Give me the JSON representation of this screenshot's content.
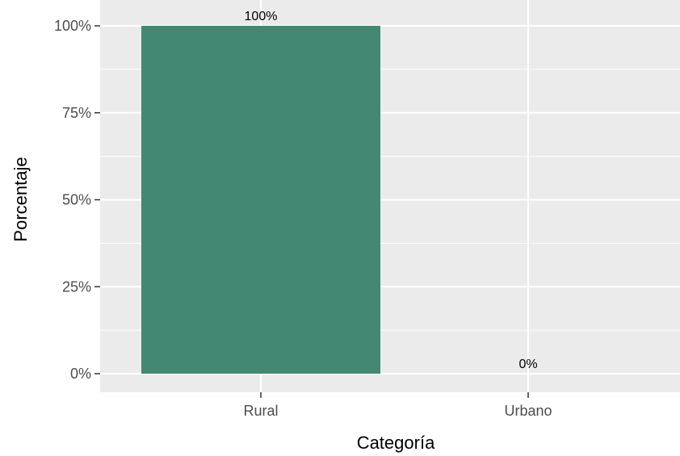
{
  "chart_data": {
    "type": "bar",
    "categories": [
      "Rural",
      "Urbano"
    ],
    "values": [
      100,
      0
    ],
    "data_labels": [
      "100%",
      "0%"
    ],
    "xlabel": "Categoría",
    "ylabel": "Porcentaje",
    "ylim": [
      0,
      100
    ],
    "yticks": [
      0,
      25,
      50,
      75,
      100
    ],
    "ytick_labels": [
      "0%",
      "25%",
      "50%",
      "75%",
      "100%"
    ],
    "grid": true,
    "legend": "none",
    "colors": {
      "bar": "#438872",
      "panel_background": "#ebebeb",
      "gridline": "#ffffff",
      "tick_label": "#4d4d4d",
      "axis_title": "#000000"
    }
  }
}
